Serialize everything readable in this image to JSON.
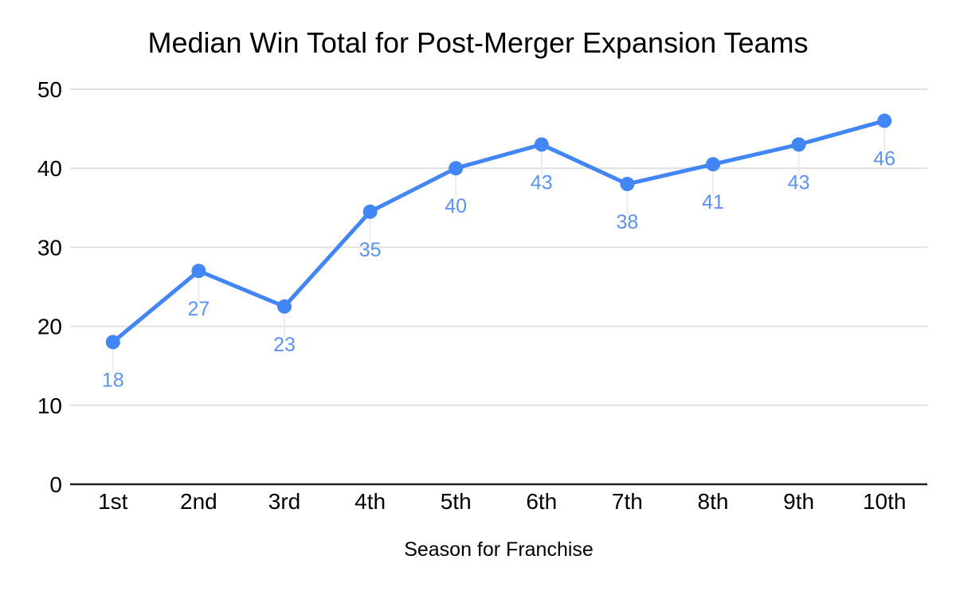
{
  "chart_data": {
    "type": "line",
    "title": "Median Win Total for Post-Merger Expansion Teams",
    "xlabel": "Season for Franchise",
    "ylabel": "",
    "categories": [
      "1st",
      "2nd",
      "3rd",
      "4th",
      "5th",
      "6th",
      "7th",
      "8th",
      "9th",
      "10th"
    ],
    "values": [
      18,
      27,
      22.5,
      34.5,
      40,
      43,
      38,
      40.5,
      43,
      46
    ],
    "point_labels": [
      "18",
      "27",
      "23",
      "35",
      "40",
      "43",
      "38",
      "41",
      "43",
      "46"
    ],
    "ylim": [
      0,
      50
    ],
    "yticks": [
      0,
      10,
      20,
      30,
      40,
      50
    ],
    "grid": "horizontal",
    "legend": "none",
    "colors": {
      "series": "#4285f4",
      "point_label": "#5b92f5",
      "gridline": "#e0e0e0",
      "baseline": "#212121",
      "leader_line": "#ececec",
      "text": "#000000",
      "background": "#ffffff"
    }
  }
}
